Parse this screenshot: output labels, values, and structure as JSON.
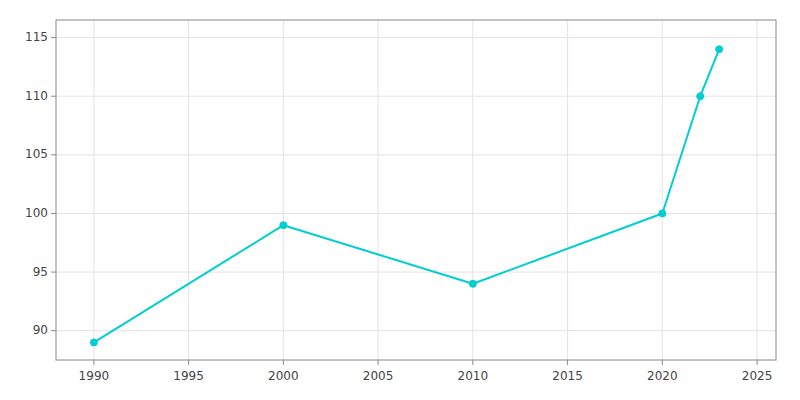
{
  "chart_data": {
    "type": "line",
    "x": [
      1990,
      2000,
      2010,
      2020,
      2022,
      2023
    ],
    "values": [
      89,
      99,
      94,
      100,
      110,
      114
    ],
    "color": "#00CED1",
    "marker": "circle",
    "xlim": [
      1988,
      2026
    ],
    "ylim": [
      87.5,
      116.5
    ],
    "xticks": [
      1990,
      1995,
      2000,
      2005,
      2010,
      2015,
      2020,
      2025
    ],
    "yticks": [
      90,
      95,
      100,
      105,
      110,
      115
    ],
    "grid": true
  }
}
